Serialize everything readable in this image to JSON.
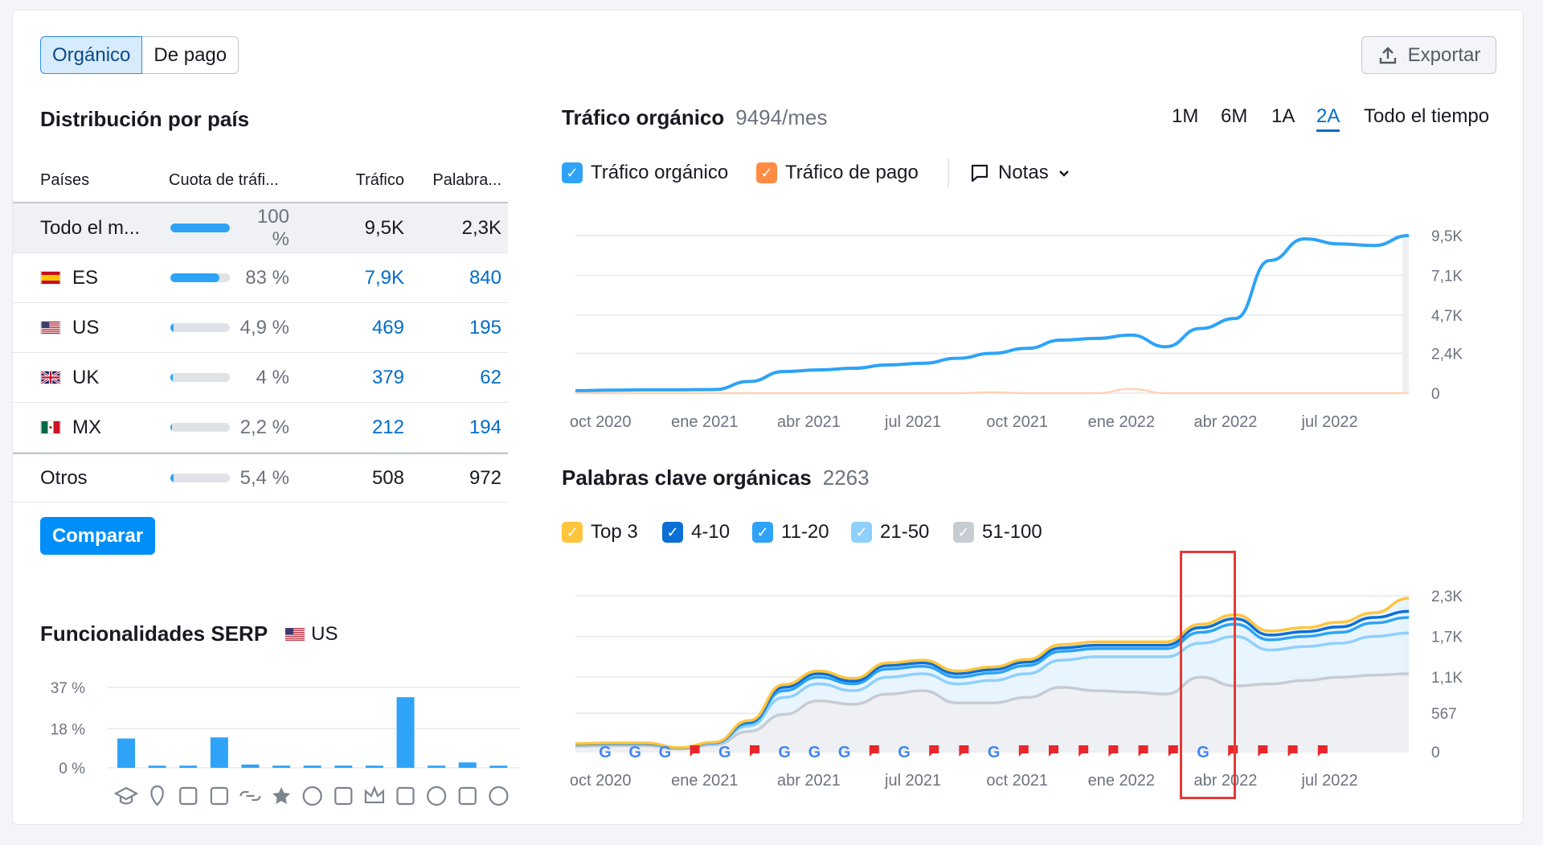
{
  "toggle": {
    "organic": "Orgánico",
    "paid": "De pago"
  },
  "export_label": "Exportar",
  "country": {
    "title": "Distribución por país",
    "headers": [
      "Países",
      "Cuota de tráfi...",
      "Tráfico",
      "Palabra..."
    ],
    "rows": [
      {
        "name": "Todo el m...",
        "flag": "",
        "share": 100,
        "share_label": "100 %",
        "traffic": "9,5K",
        "keywords": "2,3K"
      },
      {
        "name": "ES",
        "flag": "es",
        "share": 83,
        "share_label": "83 %",
        "traffic": "7,9K",
        "keywords": "840"
      },
      {
        "name": "US",
        "flag": "us",
        "share": 4.9,
        "share_label": "4,9 %",
        "traffic": "469",
        "keywords": "195"
      },
      {
        "name": "UK",
        "flag": "uk",
        "share": 4,
        "share_label": "4 %",
        "traffic": "379",
        "keywords": "62"
      },
      {
        "name": "MX",
        "flag": "mx",
        "share": 2.2,
        "share_label": "2,2 %",
        "traffic": "212",
        "keywords": "194"
      },
      {
        "name": "Otros",
        "flag": "",
        "share": 5.4,
        "share_label": "5,4 %",
        "traffic": "508",
        "keywords": "972"
      }
    ],
    "compare_label": "Comparar"
  },
  "serp": {
    "title": "Funcionalidades SERP",
    "region": "US",
    "chart_data": {
      "type": "bar",
      "categories": [
        "knowledge-panel",
        "local-pack",
        "featured-snippet",
        "image-pack",
        "sitelinks",
        "reviews",
        "video",
        "video-carousel",
        "top-stories",
        "image",
        "video-2",
        "faq",
        "people-also-ask"
      ],
      "values": [
        13.5,
        1,
        1,
        14,
        1.5,
        1,
        1,
        1,
        1,
        32.5,
        1,
        2.5,
        1
      ],
      "ylim": [
        0,
        37
      ],
      "ytick_labels": [
        "37 %",
        "18 %",
        "0 %"
      ],
      "yticks": [
        37,
        18,
        0
      ]
    },
    "icons": [
      "graduation-cap-icon",
      "map-pin-icon",
      "snippet-icon",
      "image-pack-icon",
      "link-icon",
      "star-icon",
      "play-circle-icon",
      "video-icon",
      "crown-icon",
      "image-icon",
      "play-icon",
      "faq-icon",
      "question-icon"
    ]
  },
  "traffic": {
    "title": "Tráfico orgánico",
    "value": "9494/mes",
    "ranges": [
      "1M",
      "6M",
      "1A",
      "2A",
      "Todo el tiempo"
    ],
    "active_range": "2A",
    "legend": {
      "organic": "Tráfico orgánico",
      "paid": "Tráfico de pago",
      "notes": "Notas"
    },
    "chart_data": {
      "type": "line",
      "x": [
        "2020-09",
        "2020-10",
        "2020-11",
        "2020-12",
        "2021-01",
        "2021-02",
        "2021-03",
        "2021-04",
        "2021-05",
        "2021-06",
        "2021-07",
        "2021-08",
        "2021-09",
        "2021-10",
        "2021-11",
        "2021-12",
        "2022-01",
        "2022-02",
        "2022-03",
        "2022-04",
        "2022-05",
        "2022-06",
        "2022-07",
        "2022-08",
        "2022-09"
      ],
      "series": [
        {
          "name": "Tráfico orgánico",
          "values": [
            150,
            180,
            200,
            200,
            220,
            700,
            1300,
            1400,
            1500,
            1700,
            1800,
            2100,
            2400,
            2700,
            3200,
            3300,
            3500,
            2800,
            3900,
            4500,
            8000,
            9300,
            9000,
            8900,
            9500
          ]
        },
        {
          "name": "Tráfico de pago",
          "values": [
            0,
            0,
            0,
            0,
            0,
            0,
            0,
            0,
            0,
            0,
            0,
            0,
            50,
            0,
            0,
            0,
            250,
            0,
            0,
            0,
            0,
            0,
            0,
            0,
            0
          ]
        }
      ],
      "ylim": [
        0,
        9500
      ],
      "ytick_labels": [
        "9,5K",
        "7,1K",
        "4,7K",
        "2,4K",
        "0"
      ],
      "yticks": [
        9500,
        7100,
        4700,
        2400,
        0
      ],
      "xtick_labels": [
        "oct 2020",
        "ene 2021",
        "abr 2021",
        "jul 2021",
        "oct 2021",
        "ene 2022",
        "abr 2022",
        "jul 2022"
      ]
    }
  },
  "keywords": {
    "title": "Palabras clave orgánicas",
    "value": "2263",
    "legend": [
      "Top 3",
      "4-10",
      "11-20",
      "21-50",
      "51-100"
    ],
    "chart_data": {
      "type": "area",
      "x": [
        "2020-09",
        "2020-10",
        "2020-11",
        "2020-12",
        "2021-01",
        "2021-02",
        "2021-03",
        "2021-04",
        "2021-05",
        "2021-06",
        "2021-07",
        "2021-08",
        "2021-09",
        "2021-10",
        "2021-11",
        "2021-12",
        "2022-01",
        "2022-02",
        "2022-03",
        "2022-04",
        "2022-05",
        "2022-06",
        "2022-07",
        "2022-08",
        "2022-09"
      ],
      "series": [
        {
          "name": "51-100",
          "values": [
            80,
            90,
            90,
            40,
            100,
            300,
            550,
            750,
            700,
            850,
            900,
            720,
            720,
            800,
            950,
            900,
            880,
            850,
            1100,
            970,
            1000,
            1050,
            1100,
            1130,
            1150
          ]
        },
        {
          "name": "21-50",
          "values": [
            100,
            110,
            110,
            50,
            120,
            380,
            800,
            1000,
            900,
            1100,
            1150,
            1000,
            1050,
            1150,
            1350,
            1400,
            1400,
            1400,
            1600,
            1700,
            1500,
            1550,
            1600,
            1700,
            1750
          ]
        },
        {
          "name": "11-20",
          "values": [
            110,
            120,
            120,
            55,
            130,
            420,
            900,
            1100,
            1000,
            1220,
            1260,
            1100,
            1160,
            1270,
            1480,
            1520,
            1520,
            1520,
            1760,
            1880,
            1650,
            1700,
            1760,
            1900,
            1980
          ]
        },
        {
          "name": "4-10",
          "values": [
            115,
            125,
            125,
            58,
            135,
            440,
            950,
            1150,
            1040,
            1270,
            1310,
            1150,
            1210,
            1320,
            1530,
            1570,
            1570,
            1570,
            1830,
            1960,
            1720,
            1770,
            1840,
            1980,
            2070
          ]
        },
        {
          "name": "Top 3",
          "values": [
            120,
            130,
            130,
            60,
            140,
            460,
            990,
            1190,
            1080,
            1310,
            1350,
            1190,
            1250,
            1360,
            1580,
            1620,
            1620,
            1620,
            1880,
            2020,
            1780,
            1830,
            1910,
            2050,
            2263
          ]
        }
      ],
      "ylim": [
        0,
        2300
      ],
      "ytick_labels": [
        "2,3K",
        "1,7K",
        "1,1K",
        "567",
        "0"
      ],
      "yticks": [
        2300,
        1700,
        1100,
        567,
        0
      ],
      "xtick_labels": [
        "oct 2020",
        "ene 2021",
        "abr 2021",
        "jul 2021",
        "oct 2021",
        "ene 2022",
        "abr 2022",
        "jul 2022"
      ],
      "markers": [
        "G",
        "G",
        "G",
        "F",
        "G",
        "F",
        "G",
        "G",
        "G",
        "F",
        "G",
        "F",
        "F",
        "G",
        "F",
        "F",
        "F",
        "F",
        "F",
        "F",
        "G",
        "F",
        "F",
        "F",
        "F"
      ]
    }
  },
  "colors": {
    "accent": "#008ff8",
    "organic": "#2ea3f7",
    "paid": "#ff8c42",
    "top3": "#ffc53d",
    "k4_10": "#0b6fd6",
    "k11_20": "#2ea3f7",
    "k21_50": "#8fd0fd",
    "k51_100": "#c7ccd3",
    "highlight": "#e53935"
  }
}
